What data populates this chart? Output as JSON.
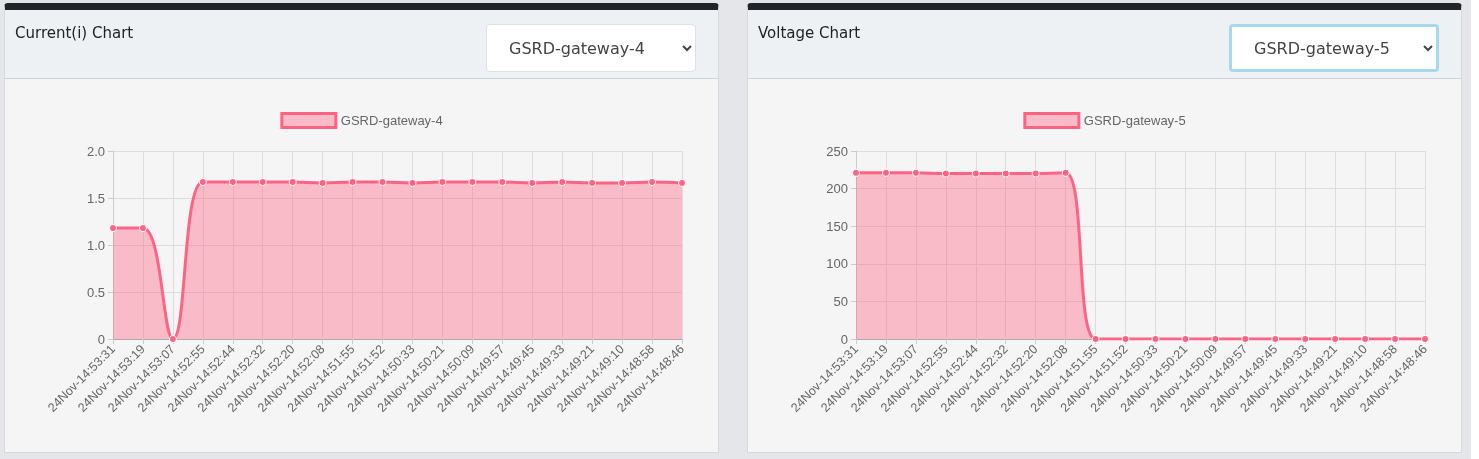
{
  "chart_data": [
    {
      "type": "area",
      "title": "Current(i) Chart",
      "categories": [
        "24Nov-14:53:31",
        "24Nov-14:53:19",
        "24Nov-14:53:07",
        "24Nov-14:52:55",
        "24Nov-14:52:44",
        "24Nov-14:52:32",
        "24Nov-14:52:20",
        "24Nov-14:52:08",
        "24Nov-14:51:55",
        "24Nov-14:51:52",
        "24Nov-14:50:33",
        "24Nov-14:50:21",
        "24Nov-14:50:09",
        "24Nov-14:49:57",
        "24Nov-14:49:45",
        "24Nov-14:49:33",
        "24Nov-14:49:21",
        "24Nov-14:49:10",
        "24Nov-14:48:58",
        "24Nov-14:48:46"
      ],
      "series": [
        {
          "name": "GSRD-gateway-4",
          "color": "#ff6384",
          "values": [
            1.18,
            1.18,
            0,
            1.67,
            1.67,
            1.67,
            1.67,
            1.66,
            1.67,
            1.67,
            1.66,
            1.67,
            1.67,
            1.67,
            1.66,
            1.67,
            1.66,
            1.66,
            1.67,
            1.66
          ]
        }
      ],
      "ylim": [
        0,
        2
      ],
      "yticks": [
        0,
        0.5,
        {
          "value": 1,
          "label": "1.0"
        },
        1.5,
        {
          "value": 2,
          "label": "2.0"
        }
      ],
      "grid": true,
      "legend": "top",
      "marker": "circle",
      "line_style": "solid"
    },
    {
      "type": "area",
      "title": "Voltage Chart",
      "categories": [
        "24Nov-14:53:31",
        "24Nov-14:53:19",
        "24Nov-14:53:07",
        "24Nov-14:52:55",
        "24Nov-14:52:44",
        "24Nov-14:52:32",
        "24Nov-14:52:20",
        "24Nov-14:52:08",
        "24Nov-14:51:55",
        "24Nov-14:51:52",
        "24Nov-14:50:33",
        "24Nov-14:50:21",
        "24Nov-14:50:09",
        "24Nov-14:49:57",
        "24Nov-14:49:45",
        "24Nov-14:49:33",
        "24Nov-14:49:21",
        "24Nov-14:49:10",
        "24Nov-14:48:58",
        "24Nov-14:48:46"
      ],
      "series": [
        {
          "name": "GSRD-gateway-5",
          "color": "#ff6384",
          "values": [
            221,
            221,
            221,
            220,
            220,
            220,
            220,
            221,
            0,
            0,
            0,
            0,
            0,
            0,
            0,
            0,
            0,
            0,
            0,
            0
          ]
        }
      ],
      "ylim": [
        0,
        250
      ],
      "yticks": [
        0,
        50,
        100,
        150,
        200,
        250
      ],
      "grid": true,
      "legend": "top",
      "marker": "circle",
      "line_style": "solid"
    }
  ]
}
